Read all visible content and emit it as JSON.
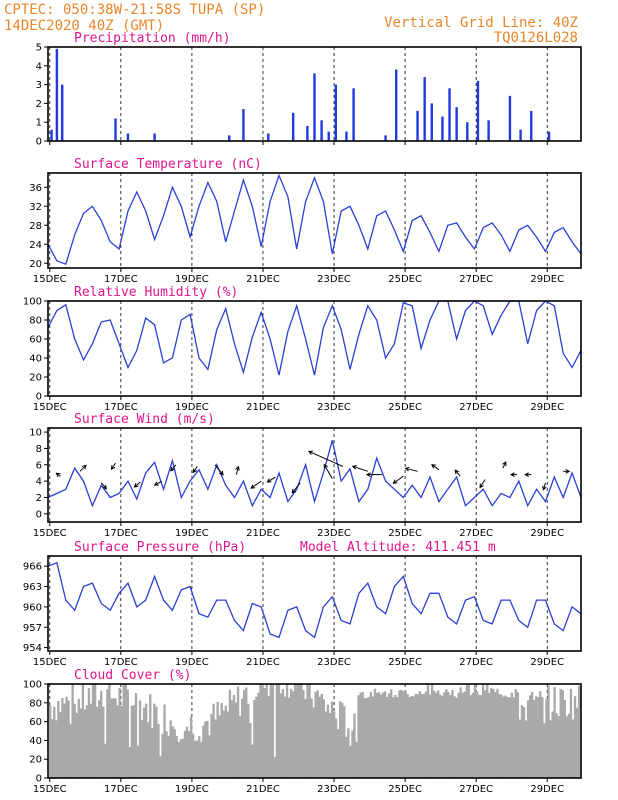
{
  "header": {
    "line1_left": "CPTEC:   050:38W-21:58S   TUPA (SP)",
    "line2_left": "14DEC2020 40Z (GMT)",
    "line1_right": "Vertical Grid Line: 40Z",
    "line2_right": "TQ0126L028"
  },
  "colors": {
    "header": "#e8862a",
    "title": "#e0158f",
    "line": "#2b3fd6",
    "bar": "#1f3be0",
    "cloud": "#a9a9a9"
  },
  "date_ticks": [
    "15DEC",
    "17DEC",
    "19DEC",
    "21DEC",
    "23DEC",
    "25DEC",
    "27DEC",
    "29DEC"
  ],
  "chart_data": [
    {
      "id": "precip",
      "type": "bar",
      "title": "Precipitation (mm/h)",
      "ylim": [
        0,
        5
      ],
      "yticks": [
        0,
        1,
        2,
        3,
        4,
        5
      ],
      "x": [
        0.1,
        0.25,
        0.4,
        1.9,
        2.25,
        3.0,
        5.1,
        5.5,
        6.2,
        6.9,
        7.3,
        7.5,
        7.7,
        7.9,
        8.1,
        8.4,
        8.6,
        9.5,
        9.8,
        10.4,
        10.6,
        10.8,
        11.1,
        11.3,
        11.5,
        11.8,
        12.1,
        12.4,
        13.0,
        13.3,
        13.6,
        14.1
      ],
      "values": [
        0.6,
        4.9,
        3.0,
        1.2,
        0.4,
        0.4,
        0.3,
        1.7,
        0.4,
        1.5,
        0.8,
        3.6,
        1.1,
        0.5,
        3.0,
        0.5,
        2.8,
        0.3,
        3.8,
        1.6,
        3.4,
        2.0,
        1.3,
        2.8,
        1.8,
        1.0,
        3.2,
        1.1,
        2.4,
        0.6,
        1.6,
        0.5
      ]
    },
    {
      "id": "temp",
      "type": "line",
      "title": "Surface Temperature (nC)",
      "ylim": [
        19,
        39
      ],
      "yticks": [
        20,
        24,
        28,
        32,
        36
      ],
      "x": [
        0,
        0.25,
        0.5,
        0.75,
        1.0,
        1.25,
        1.5,
        1.75,
        2.0,
        2.25,
        2.5,
        2.75,
        3.0,
        3.25,
        3.5,
        3.75,
        4.0,
        4.25,
        4.5,
        4.75,
        5.0,
        5.25,
        5.5,
        5.75,
        6.0,
        6.25,
        6.5,
        6.75,
        7.0,
        7.25,
        7.5,
        7.75,
        8.0,
        8.25,
        8.5,
        8.75,
        9.0,
        9.25,
        9.5,
        9.75,
        10.0,
        10.25,
        10.5,
        10.75,
        11.0,
        11.25,
        11.5,
        11.75,
        12.0,
        12.25,
        12.5,
        12.75,
        13.0,
        13.25,
        13.5,
        13.75,
        14.0,
        14.25,
        14.5,
        14.75,
        15.0
      ],
      "values": [
        24,
        20.5,
        19.8,
        26,
        30.5,
        32,
        29,
        24.5,
        23,
        31,
        35,
        31,
        25,
        30,
        36,
        32,
        25.5,
        32,
        37,
        33,
        24.5,
        31,
        37.5,
        32,
        23.5,
        33,
        38.5,
        34,
        23,
        33,
        38,
        33,
        22,
        31,
        32,
        28,
        23,
        30,
        31,
        27,
        22.5,
        29,
        30,
        26.5,
        22.5,
        28,
        28.5,
        25.5,
        23,
        27.5,
        28.5,
        26,
        22.5,
        27,
        28,
        25.5,
        22.5,
        26.5,
        27.5,
        24.5,
        22
      ],
      "xlim": [
        0,
        14.6
      ]
    },
    {
      "id": "rh",
      "type": "line",
      "title": "Relative Humidity (%)",
      "ylim": [
        0,
        100
      ],
      "yticks": [
        0,
        20,
        40,
        60,
        80,
        100
      ],
      "x": [
        0,
        0.25,
        0.5,
        0.75,
        1.0,
        1.25,
        1.5,
        1.75,
        2.0,
        2.25,
        2.5,
        2.75,
        3.0,
        3.25,
        3.5,
        3.75,
        4.0,
        4.25,
        4.5,
        4.75,
        5.0,
        5.25,
        5.5,
        5.75,
        6.0,
        6.25,
        6.5,
        6.75,
        7.0,
        7.25,
        7.5,
        7.75,
        8.0,
        8.25,
        8.5,
        8.75,
        9.0,
        9.25,
        9.5,
        9.75,
        10.0,
        10.25,
        10.5,
        10.75,
        11.0,
        11.25,
        11.5,
        11.75,
        12.0,
        12.25,
        12.5,
        12.75,
        13.0,
        13.25,
        13.5,
        13.75,
        14.0,
        14.25,
        14.5,
        14.75,
        15.0
      ],
      "values": [
        72,
        90,
        96,
        60,
        38,
        55,
        78,
        80,
        55,
        30,
        48,
        82,
        75,
        35,
        40,
        80,
        86,
        40,
        28,
        70,
        92,
        55,
        25,
        62,
        88,
        60,
        22,
        68,
        95,
        60,
        22,
        72,
        95,
        70,
        28,
        65,
        95,
        80,
        40,
        55,
        98,
        95,
        50,
        80,
        100,
        100,
        60,
        90,
        100,
        95,
        65,
        85,
        100,
        100,
        55,
        90,
        100,
        95,
        45,
        30,
        48
      ],
      "xlim": [
        0,
        14.6
      ]
    },
    {
      "id": "wind",
      "type": "line",
      "title": "Surface Wind (m/s)",
      "ylim": [
        -1,
        10.5
      ],
      "yticks": [
        0,
        2,
        4,
        6,
        8,
        10
      ],
      "x": [
        0,
        0.25,
        0.5,
        0.75,
        1.0,
        1.25,
        1.5,
        1.75,
        2.0,
        2.25,
        2.5,
        2.75,
        3.0,
        3.25,
        3.5,
        3.75,
        4.0,
        4.25,
        4.5,
        4.75,
        5.0,
        5.25,
        5.5,
        5.75,
        6.0,
        6.25,
        6.5,
        6.75,
        7.0,
        7.25,
        7.5,
        7.75,
        8.0,
        8.25,
        8.5,
        8.75,
        9.0,
        9.25,
        9.5,
        9.75,
        10.0,
        10.25,
        10.5,
        10.75,
        11.0,
        11.25,
        11.5,
        11.75,
        12.0,
        12.25,
        12.5,
        12.75,
        13.0,
        13.25,
        13.5,
        13.75,
        14.0,
        14.25,
        14.5,
        14.75,
        15.0
      ],
      "values": [
        2,
        2.5,
        3,
        5.6,
        4,
        1,
        3.5,
        2,
        2.5,
        4,
        1.8,
        5,
        6.3,
        3,
        6.5,
        2,
        4,
        5.4,
        3,
        6,
        3.5,
        2,
        4,
        1,
        3,
        2,
        5,
        1.5,
        3,
        6,
        1.5,
        5,
        9,
        4,
        5.5,
        1.5,
        3,
        6.8,
        4,
        3,
        2,
        3.5,
        2,
        4.5,
        1.5,
        3,
        4.5,
        1,
        2,
        3,
        1,
        2.5,
        2,
        4,
        1,
        3,
        1.5,
        4.5,
        2,
        5,
        2
      ],
      "xlim": [
        0,
        14.6
      ],
      "arrows": [
        {
          "x": 0.35,
          "y": 4.6,
          "dx": -4,
          "dy": -3
        },
        {
          "x": 0.9,
          "y": 5.2,
          "dx": 6,
          "dy": -6
        },
        {
          "x": 1.5,
          "y": 3.8,
          "dx": 5,
          "dy": 6
        },
        {
          "x": 1.9,
          "y": 6.2,
          "dx": -4,
          "dy": 6
        },
        {
          "x": 2.6,
          "y": 3.9,
          "dx": -6,
          "dy": 5
        },
        {
          "x": 3.2,
          "y": 4.0,
          "dx": -7,
          "dy": 4
        },
        {
          "x": 3.6,
          "y": 6.0,
          "dx": -5,
          "dy": 6
        },
        {
          "x": 4.2,
          "y": 5.8,
          "dx": -4,
          "dy": 6
        },
        {
          "x": 4.7,
          "y": 6.0,
          "dx": 8,
          "dy": 10
        },
        {
          "x": 5.3,
          "y": 4.8,
          "dx": 2,
          "dy": -8
        },
        {
          "x": 6.0,
          "y": 4.0,
          "dx": -10,
          "dy": 7
        },
        {
          "x": 6.4,
          "y": 4.5,
          "dx": -8,
          "dy": 5
        },
        {
          "x": 7.1,
          "y": 3.8,
          "dx": -8,
          "dy": 10
        },
        {
          "x": 8.0,
          "y": 4.3,
          "dx": -8,
          "dy": -14
        },
        {
          "x": 8.3,
          "y": 5.8,
          "dx": -34,
          "dy": -15
        },
        {
          "x": 9.0,
          "y": 5.2,
          "dx": -15,
          "dy": -5
        },
        {
          "x": 9.4,
          "y": 4.8,
          "dx": -15,
          "dy": 0
        },
        {
          "x": 10.0,
          "y": 4.6,
          "dx": -10,
          "dy": 7
        },
        {
          "x": 10.4,
          "y": 5.2,
          "dx": -12,
          "dy": -3
        },
        {
          "x": 11.0,
          "y": 5.4,
          "dx": -7,
          "dy": -5
        },
        {
          "x": 11.6,
          "y": 4.6,
          "dx": -5,
          "dy": -6
        },
        {
          "x": 12.3,
          "y": 4.2,
          "dx": -5,
          "dy": 8
        },
        {
          "x": 12.8,
          "y": 5.6,
          "dx": 3,
          "dy": -6
        },
        {
          "x": 13.2,
          "y": 4.8,
          "dx": -6,
          "dy": 0
        },
        {
          "x": 13.6,
          "y": 4.8,
          "dx": -6,
          "dy": 0
        },
        {
          "x": 14.0,
          "y": 3.8,
          "dx": -2,
          "dy": 7
        },
        {
          "x": 14.5,
          "y": 5.2,
          "dx": 6,
          "dy": 0
        }
      ]
    },
    {
      "id": "pres",
      "type": "line",
      "title": "Surface Pressure (hPa)",
      "annotation": "Model Altitude: 411.451 m",
      "ylim": [
        953.5,
        967.5
      ],
      "yticks": [
        954,
        957,
        960,
        963,
        966
      ],
      "x": [
        0,
        0.25,
        0.5,
        0.75,
        1.0,
        1.25,
        1.5,
        1.75,
        2.0,
        2.25,
        2.5,
        2.75,
        3.0,
        3.25,
        3.5,
        3.75,
        4.0,
        4.25,
        4.5,
        4.75,
        5.0,
        5.25,
        5.5,
        5.75,
        6.0,
        6.25,
        6.5,
        6.75,
        7.0,
        7.25,
        7.5,
        7.75,
        8.0,
        8.25,
        8.5,
        8.75,
        9.0,
        9.25,
        9.5,
        9.75,
        10.0,
        10.25,
        10.5,
        10.75,
        11.0,
        11.25,
        11.5,
        11.75,
        12.0,
        12.25,
        12.5,
        12.75,
        13.0,
        13.25,
        13.5,
        13.75,
        14.0,
        14.25,
        14.5,
        14.75,
        15.0
      ],
      "values": [
        966,
        966.5,
        961,
        959.5,
        963,
        963.5,
        960.5,
        959.5,
        962,
        963.5,
        960,
        961,
        964.5,
        961,
        959.5,
        962.5,
        963,
        959,
        958.5,
        961,
        961,
        958,
        956.5,
        960.5,
        960,
        956,
        955.5,
        959.5,
        960,
        956.5,
        955.5,
        960,
        961.5,
        958,
        957.5,
        962,
        963.5,
        960,
        959,
        963,
        964.5,
        960.5,
        959,
        962,
        962,
        958.5,
        957.5,
        961,
        961.5,
        958,
        957.5,
        961,
        961,
        958,
        957,
        961,
        961,
        957.5,
        956.5,
        960,
        959
      ],
      "xlim": [
        0,
        14.6
      ]
    },
    {
      "id": "cloud",
      "type": "area",
      "title": "Cloud Cover (%)",
      "ylim": [
        0,
        100
      ],
      "yticks": [
        0,
        20,
        40,
        60,
        80,
        100
      ]
    }
  ]
}
